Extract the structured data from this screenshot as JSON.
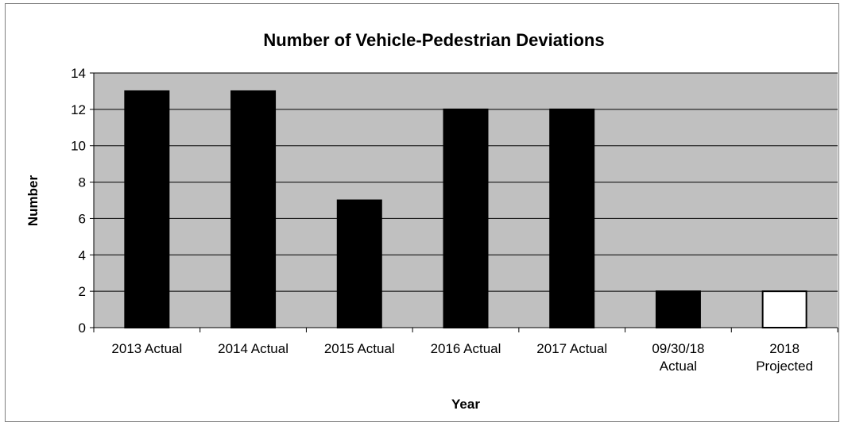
{
  "chart_data": {
    "type": "bar",
    "title": "Number of Vehicle-Pedestrian Deviations",
    "xlabel": "Year",
    "ylabel": "Number",
    "categories": [
      [
        "2013 Actual"
      ],
      [
        "2014 Actual"
      ],
      [
        "2015 Actual"
      ],
      [
        "2016 Actual"
      ],
      [
        "2017 Actual"
      ],
      [
        "09/30/18",
        "Actual"
      ],
      [
        "2018",
        "Projected"
      ]
    ],
    "values": [
      13,
      13,
      7,
      12,
      12,
      2,
      2
    ],
    "bar_colors": [
      "#000000",
      "#000000",
      "#000000",
      "#000000",
      "#000000",
      "#000000",
      "#ffffff"
    ],
    "ylim": [
      0,
      14
    ],
    "yticks": [
      0,
      2,
      4,
      6,
      8,
      10,
      12,
      14
    ],
    "grid": true,
    "plot_background": "#c0c0c0"
  }
}
